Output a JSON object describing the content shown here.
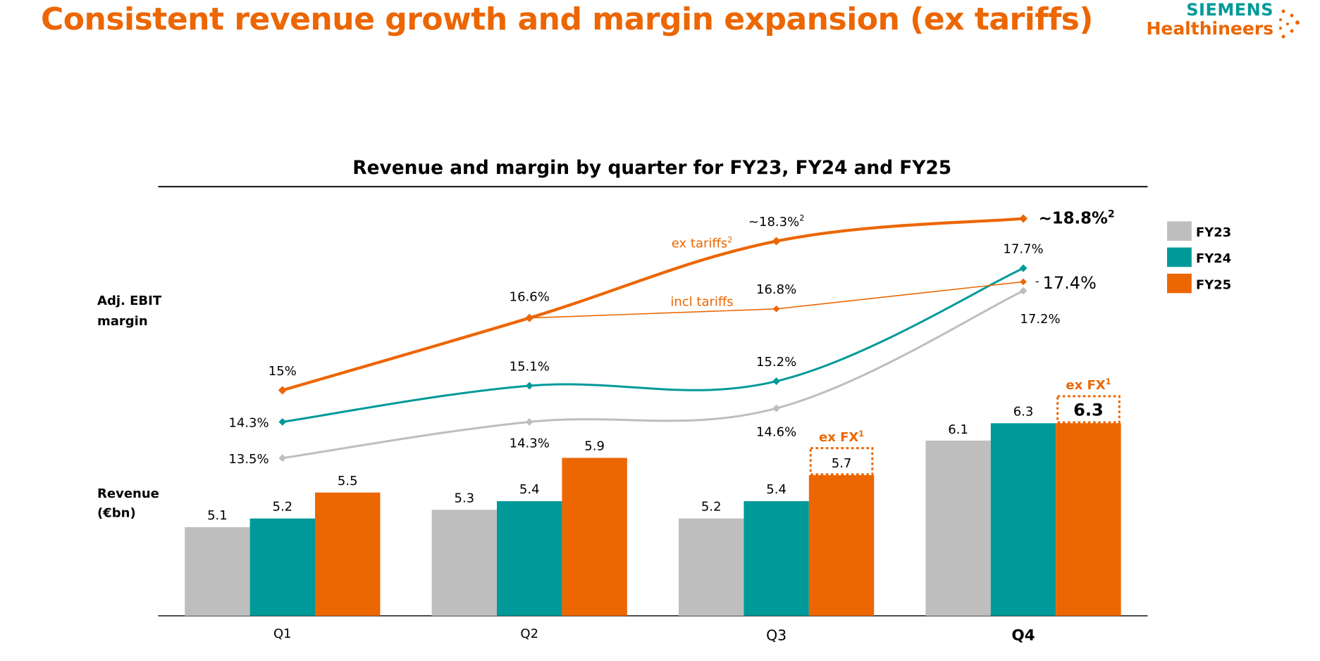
{
  "title": "Consistent revenue growth and margin expansion (ex tariffs)",
  "logo": {
    "line1": "SIEMENS",
    "line2": "Healthineers"
  },
  "colors": {
    "FY23": "#BEBEBE",
    "FY24": "#009999",
    "FY25": "#EC6602",
    "text": "#000000"
  },
  "chart_data": {
    "type": "bar+line",
    "title": "Revenue and margin by quarter for FY23, FY24 and FY25",
    "categories": [
      "Q1",
      "Q2",
      "Q3",
      "Q4"
    ],
    "row_labels": {
      "margin": "Adj. EBIT margin",
      "revenue": "Revenue (€bn)"
    },
    "legend": {
      "placement": "right",
      "entries": [
        "FY23",
        "FY24",
        "FY25"
      ]
    },
    "revenue": {
      "series": [
        {
          "name": "FY23",
          "values": [
            5.1,
            5.3,
            5.2,
            6.1
          ],
          "labels": [
            "5.1",
            "5.3",
            "5.2",
            "6.1"
          ]
        },
        {
          "name": "FY24",
          "values": [
            5.2,
            5.4,
            5.4,
            6.3
          ],
          "labels": [
            "5.2",
            "5.4",
            "5.4",
            "6.3"
          ]
        },
        {
          "name": "FY25",
          "values": [
            5.5,
            5.9,
            5.7,
            6.3
          ],
          "labels": [
            "5.5",
            "5.9",
            "5.7",
            "6.3"
          ]
        }
      ],
      "ex_fx_note": "ex FX",
      "ex_fx_sup": "1",
      "ex_fx_quarters": [
        "Q3",
        "Q4"
      ]
    },
    "margin": {
      "unit": "%",
      "series": [
        {
          "name": "FY23",
          "values": [
            13.5,
            14.3,
            14.6,
            17.2
          ],
          "labels": [
            "13.5%",
            "14.3%",
            "14.6%",
            "17.2%"
          ]
        },
        {
          "name": "FY24",
          "values": [
            14.3,
            15.1,
            15.2,
            17.7
          ],
          "labels": [
            "14.3%",
            "15.1%",
            "15.2%",
            "17.7%"
          ]
        },
        {
          "name": "FY25 ex tariffs",
          "values": [
            15.0,
            16.6,
            18.3,
            18.8
          ],
          "labels": [
            "15%",
            "16.6%",
            "~18.3%",
            "~18.8%"
          ],
          "label_sup": [
            "",
            "",
            "2",
            "2"
          ],
          "annotation": "ex tariffs",
          "annotation_sup": "2"
        },
        {
          "name": "FY25 incl tariffs",
          "x": [
            "Q2",
            "Q3",
            "Q4"
          ],
          "values": [
            16.6,
            16.8,
            17.4
          ],
          "labels": [
            "",
            "16.8%",
            "17.4%"
          ],
          "annotation": "incl tariffs"
        }
      ]
    }
  }
}
